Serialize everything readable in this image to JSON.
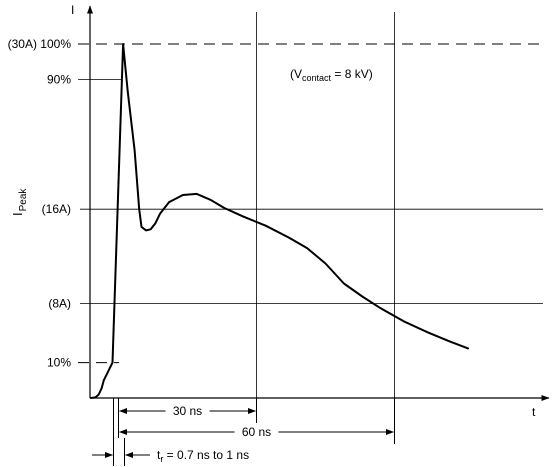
{
  "chart_data": {
    "type": "line",
    "title": "",
    "xlabel": "t",
    "ylabel": "I",
    "ylabel_side": {
      "main": "I",
      "sub": "Peak"
    },
    "annotation": {
      "pre": "(V",
      "sub": "contact",
      "post": " = 8 kV)"
    },
    "y_levels": [
      {
        "label": "(30A) 100%",
        "value": 30,
        "dashed": true
      },
      {
        "label": "90%",
        "value": 27,
        "dashed": false
      },
      {
        "label": "(16A)",
        "value": 16,
        "dashed": false
      },
      {
        "label": "(8A)",
        "value": 8,
        "dashed": false
      },
      {
        "label": "10%",
        "value": 3,
        "dashed": true
      }
    ],
    "ylim": [
      0,
      33
    ],
    "x_range_ns": [
      0,
      90
    ],
    "vertical_gridlines_ns": [
      30,
      60
    ],
    "peak_time_ns": 1,
    "dimensions": [
      {
        "label": "30 ns",
        "from_ns": 0,
        "to_ns": 30
      },
      {
        "label": "60 ns",
        "from_ns": 0,
        "to_ns": 60
      }
    ],
    "rise_time": {
      "pre": "t",
      "sub": "r",
      "post": " = 0.7 ns to 1 ns"
    },
    "series": [
      {
        "values": [
          [
            -6,
            0
          ],
          [
            -5,
            0.05
          ],
          [
            -4.3,
            0.3
          ],
          [
            -3.7,
            0.8
          ],
          [
            -3.2,
            1.5
          ],
          [
            -1.3,
            3
          ],
          [
            1,
            30
          ],
          [
            2,
            26
          ],
          [
            3.5,
            21
          ],
          [
            4.5,
            16
          ],
          [
            5,
            14.5
          ],
          [
            6,
            14.2
          ],
          [
            7,
            14.3
          ],
          [
            8,
            14.8
          ],
          [
            9,
            15.6
          ],
          [
            11,
            16.6
          ],
          [
            14,
            17.2
          ],
          [
            17,
            17.3
          ],
          [
            20,
            16.8
          ],
          [
            23,
            16.1
          ],
          [
            27,
            15.4
          ],
          [
            32,
            14.6
          ],
          [
            37,
            13.6
          ],
          [
            41,
            12.7
          ],
          [
            45,
            11.4
          ],
          [
            49,
            9.7
          ],
          [
            53,
            8.6
          ],
          [
            57,
            7.6
          ],
          [
            62,
            6.5
          ],
          [
            67,
            5.6
          ],
          [
            72,
            4.8
          ],
          [
            76,
            4.2
          ]
        ]
      }
    ]
  }
}
